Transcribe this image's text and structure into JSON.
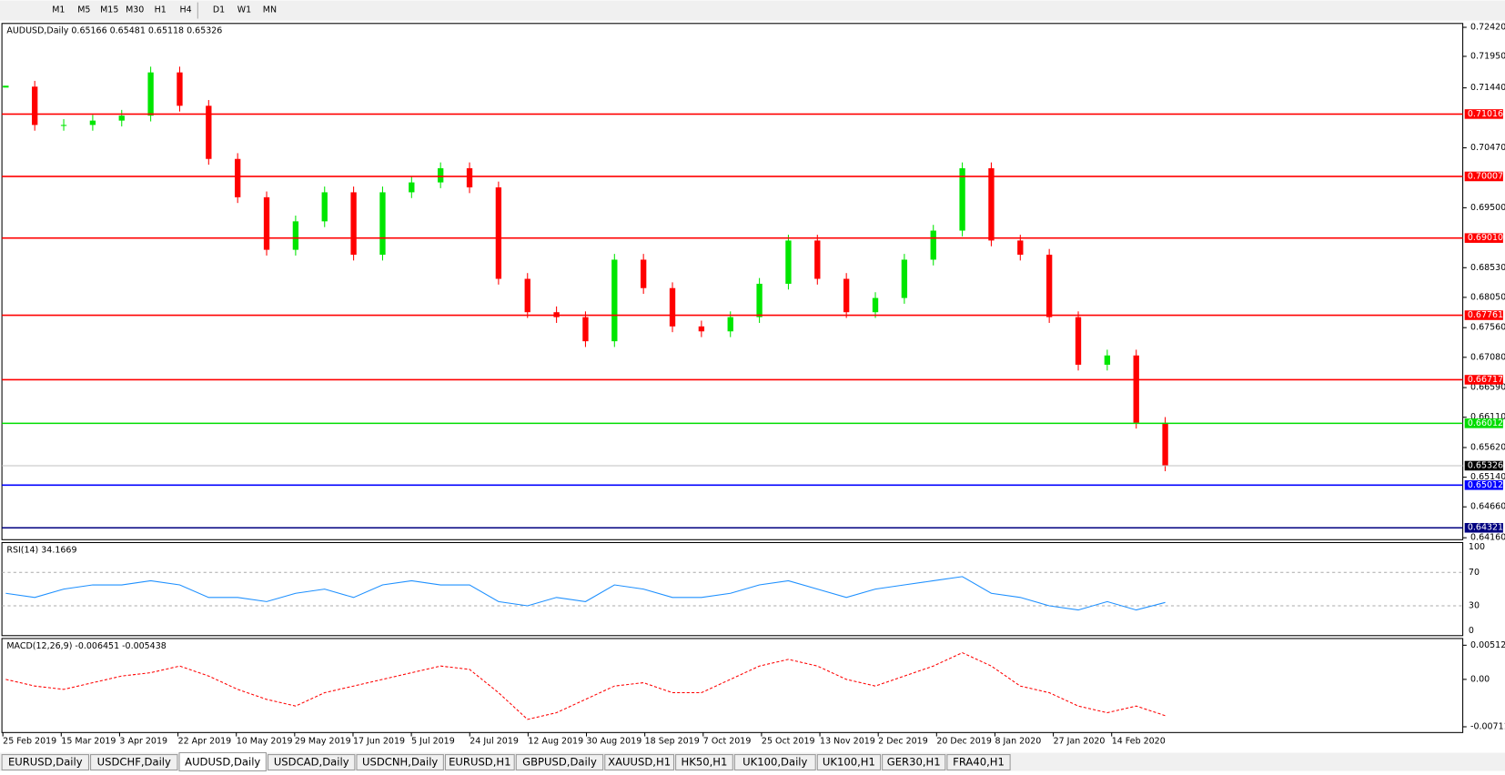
{
  "toolbar": {
    "timeframes": [
      "M1",
      "M5",
      "M15",
      "M30",
      "H1",
      "H4",
      "D1",
      "W1",
      "MN"
    ]
  },
  "main_panel": {
    "header": "AUDUSD,Daily  0.65166 0.65481 0.65118 0.65326",
    "ylim": [
      0.6416,
      0.7242
    ],
    "yticks": [
      {
        "value": 0.7242,
        "label": "0.72420"
      },
      {
        "value": 0.7195,
        "label": "0.71950"
      },
      {
        "value": 0.7144,
        "label": "0.71440"
      },
      {
        "value": 0.7047,
        "label": "0.70470"
      },
      {
        "value": 0.695,
        "label": "0.69500"
      },
      {
        "value": 0.6853,
        "label": "0.68530"
      },
      {
        "value": 0.6805,
        "label": "0.68050"
      },
      {
        "value": 0.6756,
        "label": "0.67560"
      },
      {
        "value": 0.6708,
        "label": "0.67080"
      },
      {
        "value": 0.6659,
        "label": "0.66590"
      },
      {
        "value": 0.6611,
        "label": "0.66110"
      },
      {
        "value": 0.6562,
        "label": "0.65620"
      },
      {
        "value": 0.6514,
        "label": "0.65140"
      },
      {
        "value": 0.6466,
        "label": "0.64660"
      },
      {
        "value": 0.6416,
        "label": "0.64160"
      }
    ],
    "levels": [
      {
        "value": 0.71016,
        "label": "0.71016",
        "color": "#ff0000"
      },
      {
        "value": 0.70007,
        "label": "0.70007",
        "color": "#ff0000"
      },
      {
        "value": 0.6901,
        "label": "0.69010",
        "color": "#ff0000"
      },
      {
        "value": 0.67761,
        "label": "0.67761",
        "color": "#ff0000"
      },
      {
        "value": 0.66717,
        "label": "0.66717",
        "color": "#ff0000"
      },
      {
        "value": 0.66012,
        "label": "0.66012",
        "color": "#00dd00"
      },
      {
        "value": 0.65326,
        "label": "0.65326",
        "color": "#000000"
      },
      {
        "value": 0.65012,
        "label": "0.65012",
        "color": "#0000ff"
      },
      {
        "value": 0.64321,
        "label": "0.64321",
        "color": "#000080"
      }
    ],
    "up_color": "#00e600",
    "down_color": "#ff0000",
    "closes": [
      0.7146,
      0.7084,
      0.7084,
      0.7091,
      0.7099,
      0.7169,
      0.7115,
      0.7029,
      0.6967,
      0.6882,
      0.6928,
      0.6975,
      0.6874,
      0.6975,
      0.6991,
      0.7014,
      0.6983,
      0.6835,
      0.6781,
      0.6773,
      0.6734,
      0.6866,
      0.682,
      0.6758,
      0.675,
      0.6773,
      0.6827,
      0.6897,
      0.6835,
      0.6781,
      0.6804,
      0.6866,
      0.6913,
      0.7014,
      0.6897,
      0.6874,
      0.6773,
      0.6696,
      0.6711,
      0.6602,
      0.6533
    ]
  },
  "rsi_panel": {
    "header": "RSI(14) 34.1669",
    "ylim": [
      0,
      100
    ],
    "yticks": [
      100,
      70,
      30,
      0
    ],
    "color": "#1e90ff",
    "values": [
      45,
      40,
      50,
      55,
      55,
      60,
      55,
      40,
      40,
      35,
      45,
      50,
      40,
      55,
      60,
      55,
      55,
      35,
      30,
      40,
      35,
      55,
      50,
      40,
      40,
      45,
      55,
      60,
      50,
      40,
      50,
      55,
      60,
      65,
      45,
      40,
      30,
      25,
      35,
      25,
      34
    ]
  },
  "macd_panel": {
    "header": "MACD(12,26,9) -0.006451 -0.005438",
    "ylim": [
      -0.007111,
      0.005121
    ],
    "yticks": [
      {
        "value": 0.005121,
        "label": "0.005121"
      },
      {
        "value": 0,
        "label": "0.00"
      },
      {
        "value": -0.007111,
        "label": "-0.007111"
      }
    ],
    "color": "#ff0000",
    "signal": [
      0,
      -0.001,
      -0.0015,
      -0.0005,
      0.0005,
      0.001,
      0.002,
      0.0005,
      -0.0015,
      -0.003,
      -0.004,
      -0.002,
      -0.001,
      0,
      0.001,
      0.002,
      0.0015,
      -0.002,
      -0.006,
      -0.005,
      -0.003,
      -0.001,
      -0.0005,
      -0.002,
      -0.002,
      0,
      0.002,
      0.003,
      0.002,
      0,
      -0.001,
      0.0005,
      0.002,
      0.004,
      0.002,
      -0.001,
      -0.002,
      -0.004,
      -0.005,
      -0.004,
      -0.005438
    ]
  },
  "date_axis": [
    "25 Feb 2019",
    "15 Mar 2019",
    "3 Apr 2019",
    "22 Apr 2019",
    "10 May 2019",
    "29 May 2019",
    "17 Jun 2019",
    "5 Jul 2019",
    "24 Jul 2019",
    "12 Aug 2019",
    "30 Aug 2019",
    "18 Sep 2019",
    "7 Oct 2019",
    "25 Oct 2019",
    "13 Nov 2019",
    "2 Dec 2019",
    "20 Dec 2019",
    "8 Jan 2020",
    "27 Jan 2020",
    "14 Feb 2020"
  ],
  "tabs": {
    "items": [
      "EURUSD,Daily",
      "USDCHF,Daily",
      "AUDUSD,Daily",
      "USDCAD,Daily",
      "USDCNH,Daily",
      "EURUSD,H1",
      "GBPUSD,Daily",
      "XAUUSD,H1",
      "HK50,H1",
      "UK100,Daily",
      "UK100,H1",
      "GER30,H1",
      "FRA40,H1"
    ],
    "active": 2
  }
}
